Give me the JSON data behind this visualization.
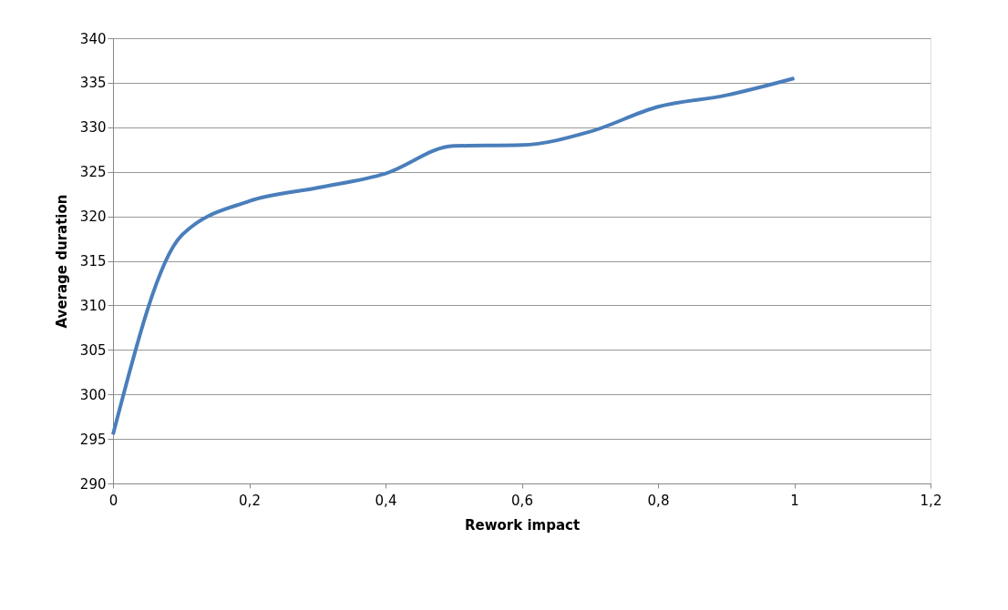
{
  "chart_data": {
    "type": "line",
    "xlabel": "Rework impact",
    "ylabel": "Average duration",
    "x": [
      0,
      0.1,
      0.2,
      0.3,
      0.4,
      0.5,
      0.6,
      0.7,
      0.8,
      0.9,
      1
    ],
    "series": [
      {
        "color": "#4a7ebb",
        "values": [
          295.5,
          317.8,
          321.7,
          323.2,
          324.8,
          327.9,
          328.0,
          329.5,
          332.3,
          333.6,
          335.5
        ]
      }
    ],
    "xlim": [
      0,
      1.2
    ],
    "xticks": [
      0,
      {
        "value": 0.2,
        "label": "0,2"
      },
      {
        "value": 0.4,
        "label": "0,4"
      },
      {
        "value": 0.6,
        "label": "0,6"
      },
      {
        "value": 0.8,
        "label": "0,8"
      },
      1,
      {
        "value": 1.2,
        "label": "1,2"
      }
    ],
    "ylim": [
      290,
      340
    ],
    "yticks": [
      290,
      295,
      300,
      305,
      310,
      315,
      320,
      325,
      330,
      335,
      340
    ],
    "grid": "y",
    "legend": false,
    "marker": "none",
    "line_style": "solid"
  }
}
